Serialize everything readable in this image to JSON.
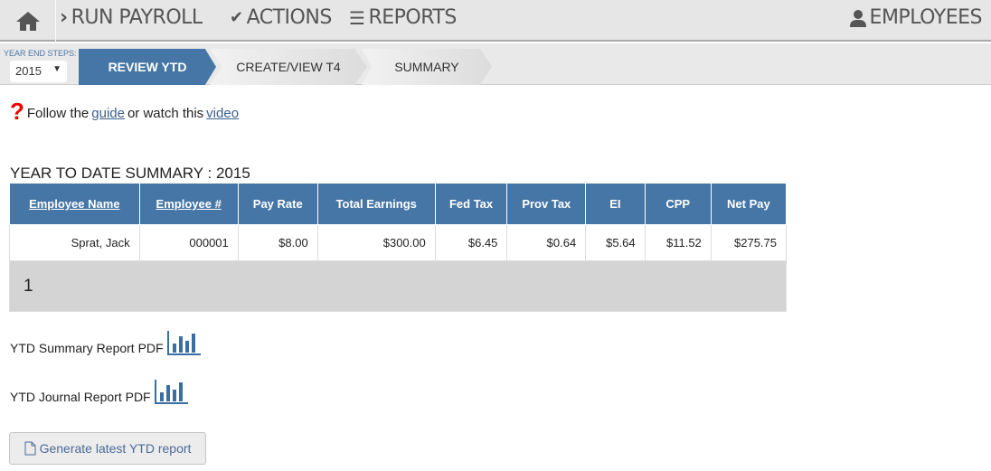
{
  "nav": {
    "run_payroll": "RUN PAYROLL",
    "actions": "ACTIONS",
    "reports": "REPORTS",
    "employees": "EMPLOYEES"
  },
  "steps": {
    "label": "YEAR END STEPS:",
    "year": "2015",
    "items": [
      "REVIEW YTD",
      "CREATE/VIEW T4",
      "SUMMARY"
    ]
  },
  "help": {
    "prefix": "Follow the",
    "guide": "guide",
    "middle": "or watch this",
    "video": "video"
  },
  "summary": {
    "title": "YEAR TO DATE SUMMARY : 2015",
    "headers": [
      "Employee Name",
      "Employee #",
      "Pay Rate",
      "Total Earnings",
      "Fed Tax",
      "Prov Tax",
      "EI",
      "CPP",
      "Net Pay"
    ],
    "rows": [
      [
        "Sprat, Jack",
        "000001",
        "$8.00",
        "$300.00",
        "$6.45",
        "$0.64",
        "$5.64",
        "$11.52",
        "$275.75"
      ]
    ],
    "page": "1"
  },
  "reports": {
    "summary_pdf": "YTD Summary Report PDF",
    "journal_pdf": "YTD Journal Report PDF",
    "generate": "Generate latest YTD report"
  },
  "colors": {
    "accent": "#4676a6",
    "help": "#e00000"
  }
}
